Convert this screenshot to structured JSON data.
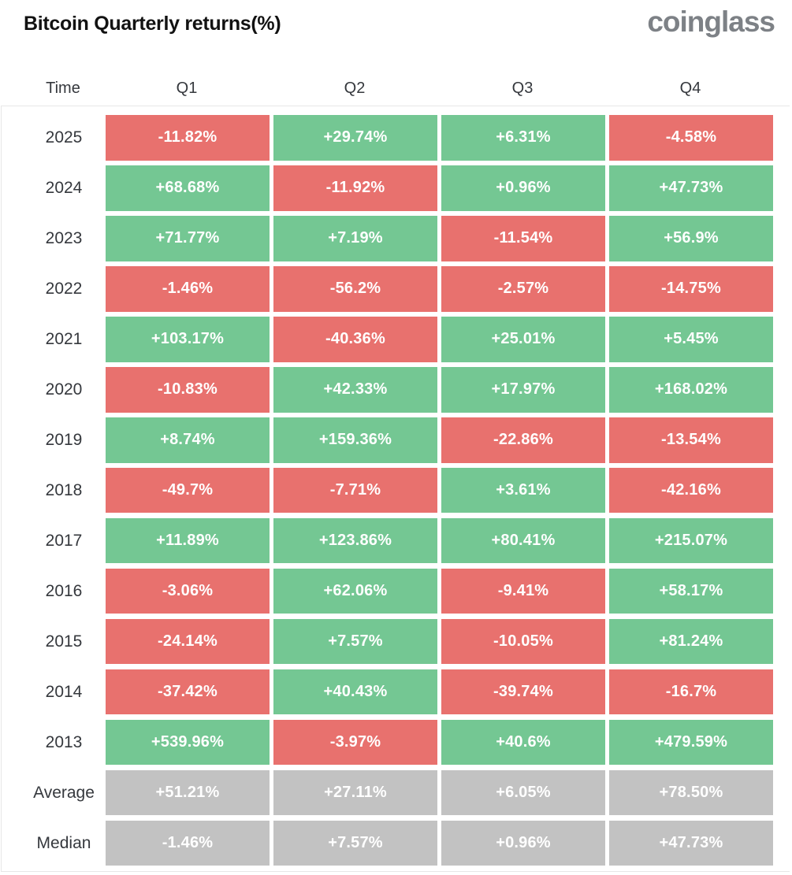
{
  "title": "Bitcoin Quarterly returns(%)",
  "logo": "coinglass",
  "colors": {
    "positive": "#74c793",
    "negative": "#e8716e",
    "summary": "#c2c2c2",
    "header_text": "#35383d",
    "title_text": "#121212",
    "logo_text": "#7d8186",
    "border": "#e7e7e7",
    "cell_text": "#ffffff"
  },
  "chart_data": {
    "type": "heatmap",
    "title": "Bitcoin Quarterly returns(%)",
    "columns": [
      "Time",
      "Q1",
      "Q2",
      "Q3",
      "Q4"
    ],
    "legend_position": "none",
    "grid": false,
    "rows": [
      {
        "label": "2025",
        "kind": "year",
        "values": [
          "-11.82%",
          "+29.74%",
          "+6.31%",
          "-4.58%"
        ]
      },
      {
        "label": "2024",
        "kind": "year",
        "values": [
          "+68.68%",
          "-11.92%",
          "+0.96%",
          "+47.73%"
        ]
      },
      {
        "label": "2023",
        "kind": "year",
        "values": [
          "+71.77%",
          "+7.19%",
          "-11.54%",
          "+56.9%"
        ]
      },
      {
        "label": "2022",
        "kind": "year",
        "values": [
          "-1.46%",
          "-56.2%",
          "-2.57%",
          "-14.75%"
        ]
      },
      {
        "label": "2021",
        "kind": "year",
        "values": [
          "+103.17%",
          "-40.36%",
          "+25.01%",
          "+5.45%"
        ]
      },
      {
        "label": "2020",
        "kind": "year",
        "values": [
          "-10.83%",
          "+42.33%",
          "+17.97%",
          "+168.02%"
        ]
      },
      {
        "label": "2019",
        "kind": "year",
        "values": [
          "+8.74%",
          "+159.36%",
          "-22.86%",
          "-13.54%"
        ]
      },
      {
        "label": "2018",
        "kind": "year",
        "values": [
          "-49.7%",
          "-7.71%",
          "+3.61%",
          "-42.16%"
        ]
      },
      {
        "label": "2017",
        "kind": "year",
        "values": [
          "+11.89%",
          "+123.86%",
          "+80.41%",
          "+215.07%"
        ]
      },
      {
        "label": "2016",
        "kind": "year",
        "values": [
          "-3.06%",
          "+62.06%",
          "-9.41%",
          "+58.17%"
        ]
      },
      {
        "label": "2015",
        "kind": "year",
        "values": [
          "-24.14%",
          "+7.57%",
          "-10.05%",
          "+81.24%"
        ]
      },
      {
        "label": "2014",
        "kind": "year",
        "values": [
          "-37.42%",
          "+40.43%",
          "-39.74%",
          "-16.7%"
        ]
      },
      {
        "label": "2013",
        "kind": "year",
        "values": [
          "+539.96%",
          "-3.97%",
          "+40.6%",
          "+479.59%"
        ]
      },
      {
        "label": "Average",
        "kind": "summary",
        "values": [
          "+51.21%",
          "+27.11%",
          "+6.05%",
          "+78.50%"
        ]
      },
      {
        "label": "Median",
        "kind": "summary",
        "values": [
          "-1.46%",
          "+7.57%",
          "+0.96%",
          "+47.73%"
        ]
      }
    ]
  }
}
